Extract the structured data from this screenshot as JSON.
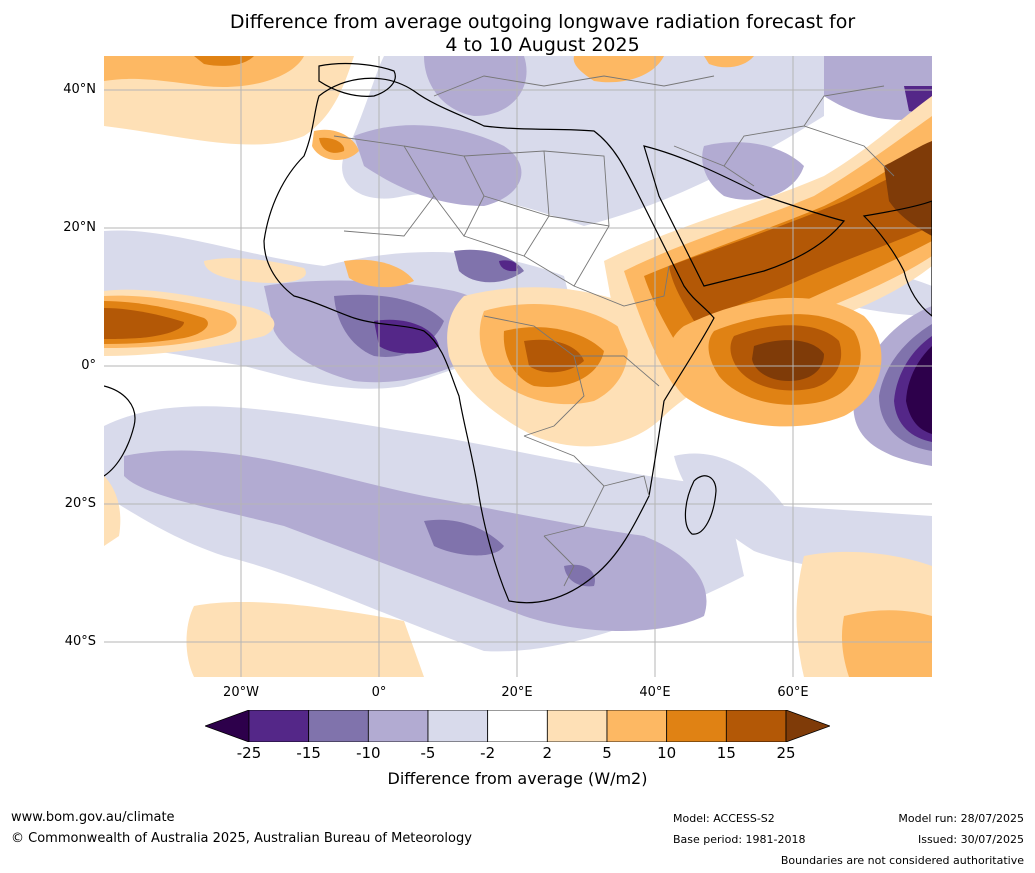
{
  "title": {
    "line1": "Difference from average outgoing longwave radiation forecast for",
    "line2": "4 to 10 August 2025"
  },
  "axes": {
    "lat_labels": [
      "40°N",
      "20°N",
      "0°",
      "20°S",
      "40°S"
    ],
    "lon_labels": [
      "20°W",
      "0°",
      "20°E",
      "40°E",
      "60°E"
    ]
  },
  "colorbar": {
    "title": "Difference from average (W/m2)",
    "tick_labels": [
      "-25",
      "-15",
      "-10",
      "-5",
      "-2",
      "2",
      "5",
      "10",
      "15",
      "25"
    ],
    "colors": [
      "#2d004b",
      "#542788",
      "#8073ac",
      "#b2abd2",
      "#d8daeb",
      "#ffffff",
      "#fee0b6",
      "#fdb863",
      "#e08214",
      "#b35806",
      "#7f3b08"
    ]
  },
  "footer": {
    "url": "www.bom.gov.au/climate",
    "copyright": "© Commonwealth of Australia 2025, Australian Bureau of Meteorology",
    "model": "Model: ACCESS-S2",
    "base_period": "Base period: 1981-2018",
    "model_run": "Model run: 28/07/2025",
    "issued": "Issued: 30/07/2025",
    "boundaries": "Boundaries are not considered authoritative"
  }
}
